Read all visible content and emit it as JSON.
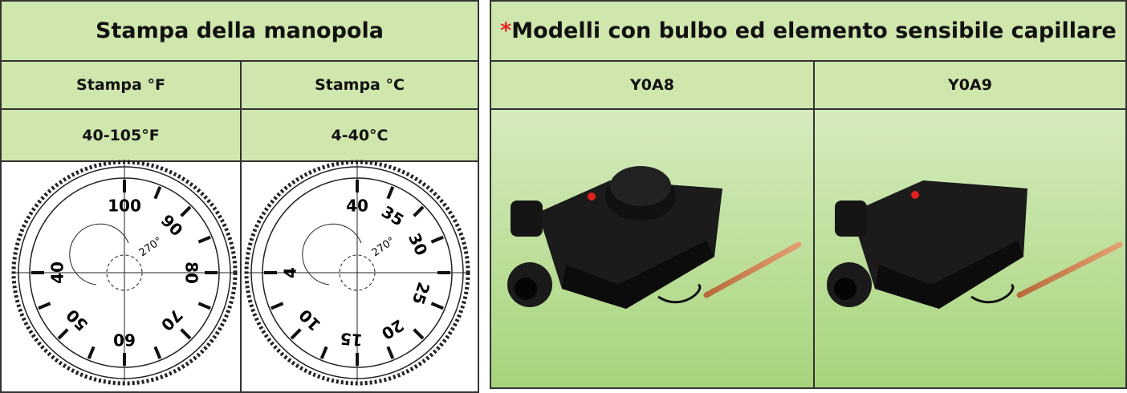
{
  "left_table": {
    "title": "Stampa della manopola",
    "columns": [
      "Stampa °F",
      "Stampa °C"
    ],
    "ranges": [
      "40-105°F",
      "4-40°C"
    ],
    "dials": [
      {
        "labels": [
          "40",
          "50",
          "60",
          "70",
          "80",
          "90",
          "100"
        ],
        "angle_label": "270°"
      },
      {
        "labels": [
          "4",
          "10",
          "15",
          "20",
          "25",
          "30",
          "35",
          "40"
        ],
        "angle_label": "270°"
      }
    ]
  },
  "right_table": {
    "asterisk": "*",
    "title": "Modelli con bulbo ed elemento sensibile capillare",
    "columns": [
      "Y0A8",
      "Y0A9"
    ]
  }
}
